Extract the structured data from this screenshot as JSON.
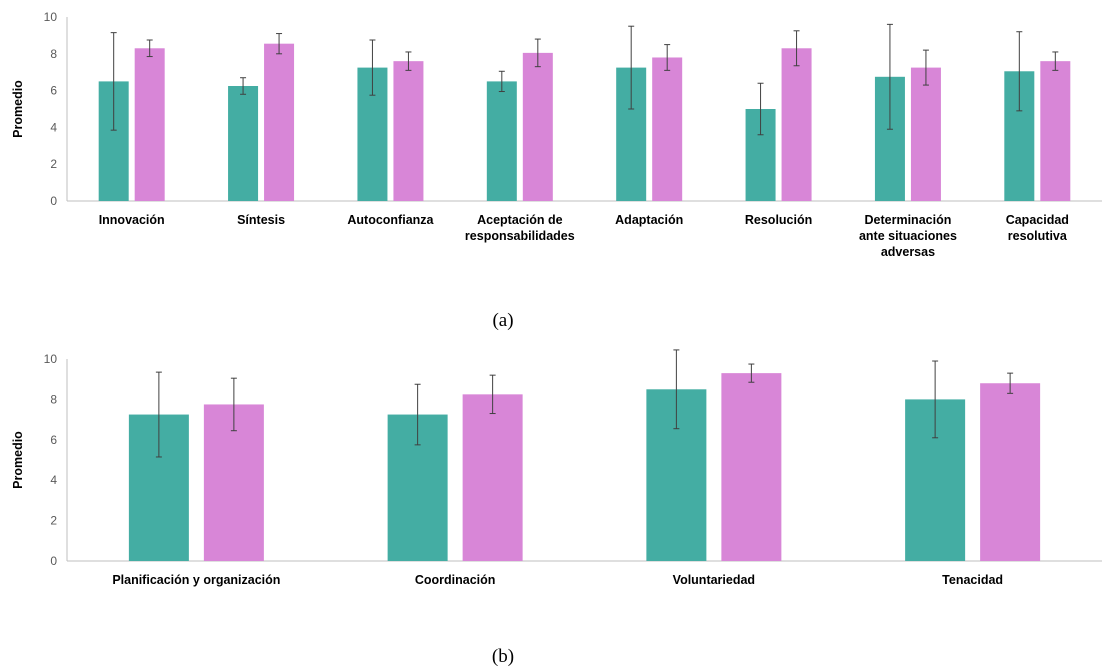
{
  "colors": {
    "series_1": "#44ADA3",
    "series_2": "#D886D7",
    "axis": "#BFBFBF",
    "error_bar": "#404040"
  },
  "chart_data": [
    {
      "type": "bar",
      "panel_label": "(a)",
      "ylabel": "Promedio",
      "ylim": [
        0,
        10
      ],
      "yticks": [
        "0",
        "2",
        "4",
        "6",
        "8",
        "10"
      ],
      "grid": false,
      "categories": [
        [
          "Innovación"
        ],
        [
          "Síntesis"
        ],
        [
          "Autoconfianza"
        ],
        [
          "Aceptación de",
          "responsabilidades"
        ],
        [
          "Adaptación"
        ],
        [
          "Resolución"
        ],
        [
          "Determinación",
          "ante situaciones",
          "adversas"
        ],
        [
          "Capacidad",
          "resolutiva"
        ]
      ],
      "series": [
        {
          "color": "#44ADA3",
          "values": [
            6.5,
            6.25,
            7.25,
            6.5,
            7.25,
            5.0,
            6.75,
            7.05
          ],
          "error": [
            2.65,
            0.45,
            1.5,
            0.55,
            2.25,
            1.4,
            2.85,
            2.15
          ]
        },
        {
          "color": "#D886D7",
          "values": [
            8.3,
            8.55,
            7.6,
            8.05,
            7.8,
            8.3,
            7.25,
            7.6
          ],
          "error": [
            0.45,
            0.55,
            0.5,
            0.75,
            0.7,
            0.95,
            0.95,
            0.5
          ]
        }
      ]
    },
    {
      "type": "bar",
      "panel_label": "(b)",
      "ylabel": "Promedio",
      "ylim": [
        0,
        10
      ],
      "yticks": [
        "0",
        "2",
        "4",
        "6",
        "8",
        "10"
      ],
      "grid": false,
      "categories": [
        [
          "Planificación y organización"
        ],
        [
          "Coordinación"
        ],
        [
          "Voluntariedad"
        ],
        [
          "Tenacidad"
        ]
      ],
      "series": [
        {
          "color": "#44ADA3",
          "values": [
            7.25,
            7.25,
            8.5,
            8.0
          ],
          "error": [
            2.1,
            1.5,
            1.95,
            1.9
          ]
        },
        {
          "color": "#D886D7",
          "values": [
            7.75,
            8.25,
            9.3,
            8.8
          ],
          "error": [
            1.3,
            0.95,
            0.45,
            0.5
          ]
        }
      ]
    }
  ]
}
